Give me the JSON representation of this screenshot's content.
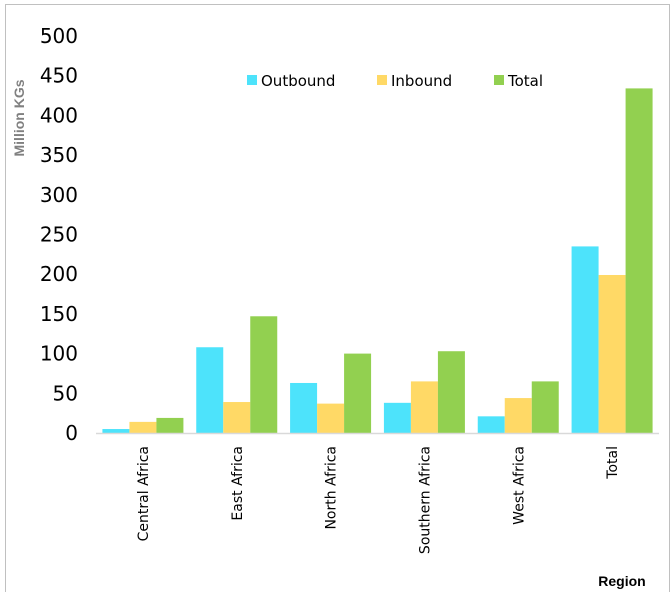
{
  "chart_data": {
    "type": "bar",
    "categories": [
      "Central Africa",
      "East Africa",
      "North Africa",
      "Southern Africa",
      "West Africa",
      "Total"
    ],
    "series": [
      {
        "name": "Outbound",
        "values": [
          5,
          108,
          63,
          38,
          21,
          235
        ],
        "color": "#4de3fb"
      },
      {
        "name": "Inbound",
        "values": [
          14,
          39,
          37,
          65,
          44,
          199
        ],
        "color": "#ffd966"
      },
      {
        "name": "Total",
        "values": [
          19,
          147,
          100,
          103,
          65,
          434
        ],
        "color": "#92d050"
      }
    ],
    "yticks": [
      "0",
      "50",
      "100",
      "150",
      "200",
      "250",
      "300",
      "350",
      "400",
      "450",
      "500"
    ],
    "ylim": [
      0,
      500
    ],
    "ylabel": "Million KGs",
    "xlabel": "Region",
    "legend": "top",
    "grid": false,
    "frame_color": "#c0c0c0",
    "axis_title_color": "#808080"
  }
}
